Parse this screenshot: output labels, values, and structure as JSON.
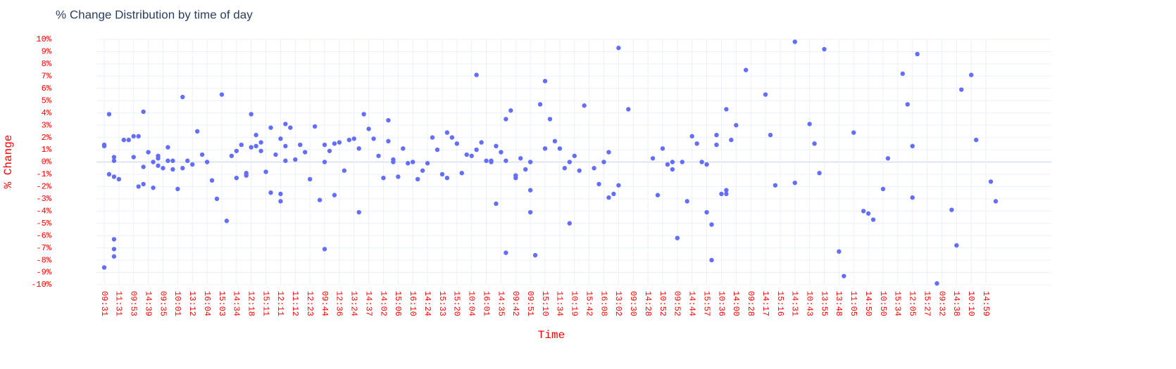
{
  "chart_data": {
    "type": "scatter",
    "title": "% Change Distribution by time of day",
    "x_label": "Time",
    "y_label": "% Change",
    "color": "#636efa",
    "grid": true,
    "categories": [
      "09:31",
      null,
      null,
      "11:31",
      null,
      null,
      "09:53",
      null,
      null,
      "14:39",
      null,
      null,
      "09:35",
      null,
      null,
      "10:01",
      null,
      null,
      "13:12",
      null,
      null,
      "16:04",
      null,
      null,
      "15:03",
      null,
      null,
      "14:34",
      null,
      null,
      "12:18",
      null,
      null,
      "15:11",
      null,
      null,
      "12:11",
      null,
      null,
      "11:12",
      null,
      null,
      "12:23",
      null,
      null,
      "09:44",
      null,
      null,
      "12:36",
      null,
      null,
      "13:24",
      null,
      null,
      "14:37",
      null,
      null,
      "14:02",
      null,
      null,
      "15:06",
      null,
      null,
      "16:10",
      null,
      null,
      "14:24",
      null,
      null,
      "15:33",
      null,
      null,
      "15:20",
      null,
      null,
      "10:04",
      null,
      null,
      "16:01",
      null,
      null,
      "14:35",
      null,
      null,
      "09:42",
      null,
      null,
      "09:51",
      null,
      null,
      "15:10",
      null,
      null,
      "11:34",
      null,
      null,
      "10:19",
      null,
      null,
      "15:42",
      null,
      null,
      "16:08",
      null,
      null,
      "13:02",
      null,
      null,
      "09:30",
      null,
      null,
      "14:28",
      null,
      null,
      "10:52",
      null,
      null,
      "09:52",
      null,
      null,
      "14:44",
      null,
      null,
      "15:57",
      null,
      null,
      "10:36",
      null,
      null,
      "14:00",
      null,
      null,
      "09:28",
      null,
      null,
      "14:17",
      null,
      null,
      "15:16",
      null,
      null,
      "14:31",
      null,
      null,
      "10:43",
      null,
      null,
      "13:55",
      null,
      null,
      "13:48",
      null,
      null,
      "11:05",
      null,
      null,
      "14:50",
      null,
      null,
      "10:50",
      null,
      null,
      "15:34",
      null,
      null,
      "12:05",
      null,
      null,
      "15:27",
      null,
      null,
      "09:32",
      null,
      null,
      "14:38",
      null,
      null,
      "10:10",
      null,
      null,
      "14:59",
      null,
      null
    ],
    "series": [
      {
        "color": "#636efa",
        "values": [
          [
            1.4,
            1.3,
            -8.6
          ],
          [
            3.9,
            -1.0
          ],
          [
            0.4,
            0.1,
            -1.2,
            -6.3,
            -7.1,
            -7.7
          ],
          [
            -1.4
          ],
          [
            1.8
          ],
          [
            1.8
          ],
          [
            2.1,
            0.4
          ],
          [
            2.1,
            -2.0
          ],
          [
            4.1,
            -0.4,
            -1.8
          ],
          [
            0.8
          ],
          [
            0.0,
            -2.1
          ],
          [
            0.5,
            0.3,
            -0.3
          ],
          [
            -0.5
          ],
          [
            1.2,
            0.1
          ],
          [
            0.1,
            -0.6
          ],
          [
            -2.2
          ],
          [
            5.3,
            -0.5
          ],
          [
            0.1
          ],
          [
            -0.2
          ],
          [
            2.5
          ],
          [
            0.6
          ],
          [
            0.0
          ],
          [
            -1.5
          ],
          [
            -3.0
          ],
          [
            5.5
          ],
          [
            -4.8
          ],
          [
            0.5
          ],
          [
            0.9,
            -1.3
          ],
          [
            1.4
          ],
          [
            -0.9,
            -1.1
          ],
          [
            3.9,
            1.2
          ],
          [
            2.2,
            1.3
          ],
          [
            1.6,
            0.9
          ],
          [
            -0.8
          ],
          [
            2.8,
            -2.5
          ],
          [
            0.6
          ],
          [
            1.9,
            -2.6,
            -3.2
          ],
          [
            3.1,
            1.3,
            0.1
          ],
          [
            2.8
          ],
          [
            0.2
          ],
          [
            1.4
          ],
          [
            0.8
          ],
          [
            -1.4
          ],
          [
            2.9
          ],
          [
            -3.1
          ],
          [
            1.4,
            0.0,
            -7.1
          ],
          [
            0.9
          ],
          [
            1.5,
            -2.7
          ],
          [
            1.6
          ],
          [
            -0.7
          ],
          [
            1.8
          ],
          [
            1.9
          ],
          [
            1.1,
            -4.1
          ],
          [
            3.9
          ],
          [
            2.7
          ],
          [
            1.9
          ],
          [
            0.5
          ],
          [
            -1.3
          ],
          [
            3.4,
            1.7
          ],
          [
            0.2,
            0.0
          ],
          [
            -1.2
          ],
          [
            1.1
          ],
          [
            -0.1
          ],
          [
            0.0
          ],
          [
            -1.4
          ],
          [
            -0.7
          ],
          [
            -0.1
          ],
          [
            2.0
          ],
          [
            1.0
          ],
          [
            -1.0
          ],
          [
            2.4,
            -1.3
          ],
          [
            2.0
          ],
          [
            1.5
          ],
          [
            -0.9
          ],
          [
            0.6
          ],
          [
            0.5
          ],
          [
            7.1,
            1.0
          ],
          [
            1.6
          ],
          [
            0.1
          ],
          [
            0.1,
            0.0
          ],
          [
            1.3,
            -3.4
          ],
          [
            0.8
          ],
          [
            3.5,
            0.1,
            -7.4
          ],
          [
            4.2
          ],
          [
            -1.1,
            -1.3
          ],
          [
            0.3
          ],
          [
            -0.6
          ],
          [
            0.0,
            -2.3,
            -4.1
          ],
          [
            -7.6
          ],
          [
            4.7
          ],
          [
            6.6,
            1.1
          ],
          [
            3.5
          ],
          [
            1.7
          ],
          [
            1.1
          ],
          [
            -0.5
          ],
          [
            0.0,
            -5.0
          ],
          [
            0.5
          ],
          [
            -0.7
          ],
          [
            4.6
          ],
          [],
          [
            -0.5
          ],
          [
            -1.8
          ],
          [
            0.0
          ],
          [
            0.8,
            -2.9
          ],
          [
            -2.6
          ],
          [
            9.3,
            -1.9
          ],
          [],
          [
            4.3
          ],
          [],
          [],
          [],
          [],
          [
            0.3
          ],
          [
            -2.7
          ],
          [
            1.1
          ],
          [
            -0.2
          ],
          [
            0.0,
            -0.6
          ],
          [
            -6.2
          ],
          [
            0.0
          ],
          [
            -3.2
          ],
          [
            2.1
          ],
          [
            1.5
          ],
          [
            0.0
          ],
          [
            -0.2,
            -4.1
          ],
          [
            -5.1,
            -8.0
          ],
          [
            2.2,
            1.4
          ],
          [
            -2.6
          ],
          [
            4.3,
            -2.3,
            -2.6
          ],
          [
            1.8
          ],
          [
            3.0
          ],
          [],
          [
            7.5
          ],
          [],
          [],
          [],
          [
            5.5
          ],
          [
            2.2
          ],
          [
            -1.9
          ],
          [],
          [],
          [],
          [
            9.8,
            -1.7
          ],
          [],
          [],
          [
            3.1
          ],
          [
            1.5
          ],
          [
            -0.9
          ],
          [
            9.2
          ],
          [],
          [],
          [
            -7.3
          ],
          [
            -9.3
          ],
          [],
          [
            2.4
          ],
          [],
          [
            -4.0
          ],
          [
            -4.2
          ],
          [
            -4.7
          ],
          [],
          [
            -2.2
          ],
          [
            0.3
          ],
          [],
          [],
          [
            7.2
          ],
          [
            4.7
          ],
          [
            1.3,
            -2.9
          ],
          [
            8.8
          ],
          [],
          [],
          [],
          [
            -9.9
          ],
          [],
          [],
          [
            -3.9
          ],
          [
            -6.8
          ],
          [
            5.9
          ],
          [],
          [
            7.1
          ],
          [
            1.8
          ],
          [],
          [],
          [
            -1.6
          ],
          [
            -3.2
          ]
        ]
      }
    ],
    "ylim": [
      -10,
      10
    ],
    "yticks": [
      {
        "value": -10,
        "label": "-10%"
      },
      {
        "value": -9,
        "label": "-9%"
      },
      {
        "value": -8,
        "label": "-8%"
      },
      {
        "value": -7,
        "label": "-7%"
      },
      {
        "value": -6,
        "label": "-6%"
      },
      {
        "value": -5,
        "label": "-5%"
      },
      {
        "value": -4,
        "label": "-4%"
      },
      {
        "value": -3,
        "label": "-3%"
      },
      {
        "value": -2,
        "label": "-2%"
      },
      {
        "value": -1,
        "label": "-1%"
      },
      {
        "value": 0,
        "label": "0%"
      },
      {
        "value": 1,
        "label": "1%"
      },
      {
        "value": 2,
        "label": "2%"
      },
      {
        "value": 3,
        "label": "3%"
      },
      {
        "value": 4,
        "label": "4%"
      },
      {
        "value": 5,
        "label": "5%"
      },
      {
        "value": 6,
        "label": "6%"
      },
      {
        "value": 7,
        "label": "7%"
      },
      {
        "value": 8,
        "label": "8%"
      },
      {
        "value": 9,
        "label": "9%"
      },
      {
        "value": 10,
        "label": "10%"
      }
    ]
  }
}
